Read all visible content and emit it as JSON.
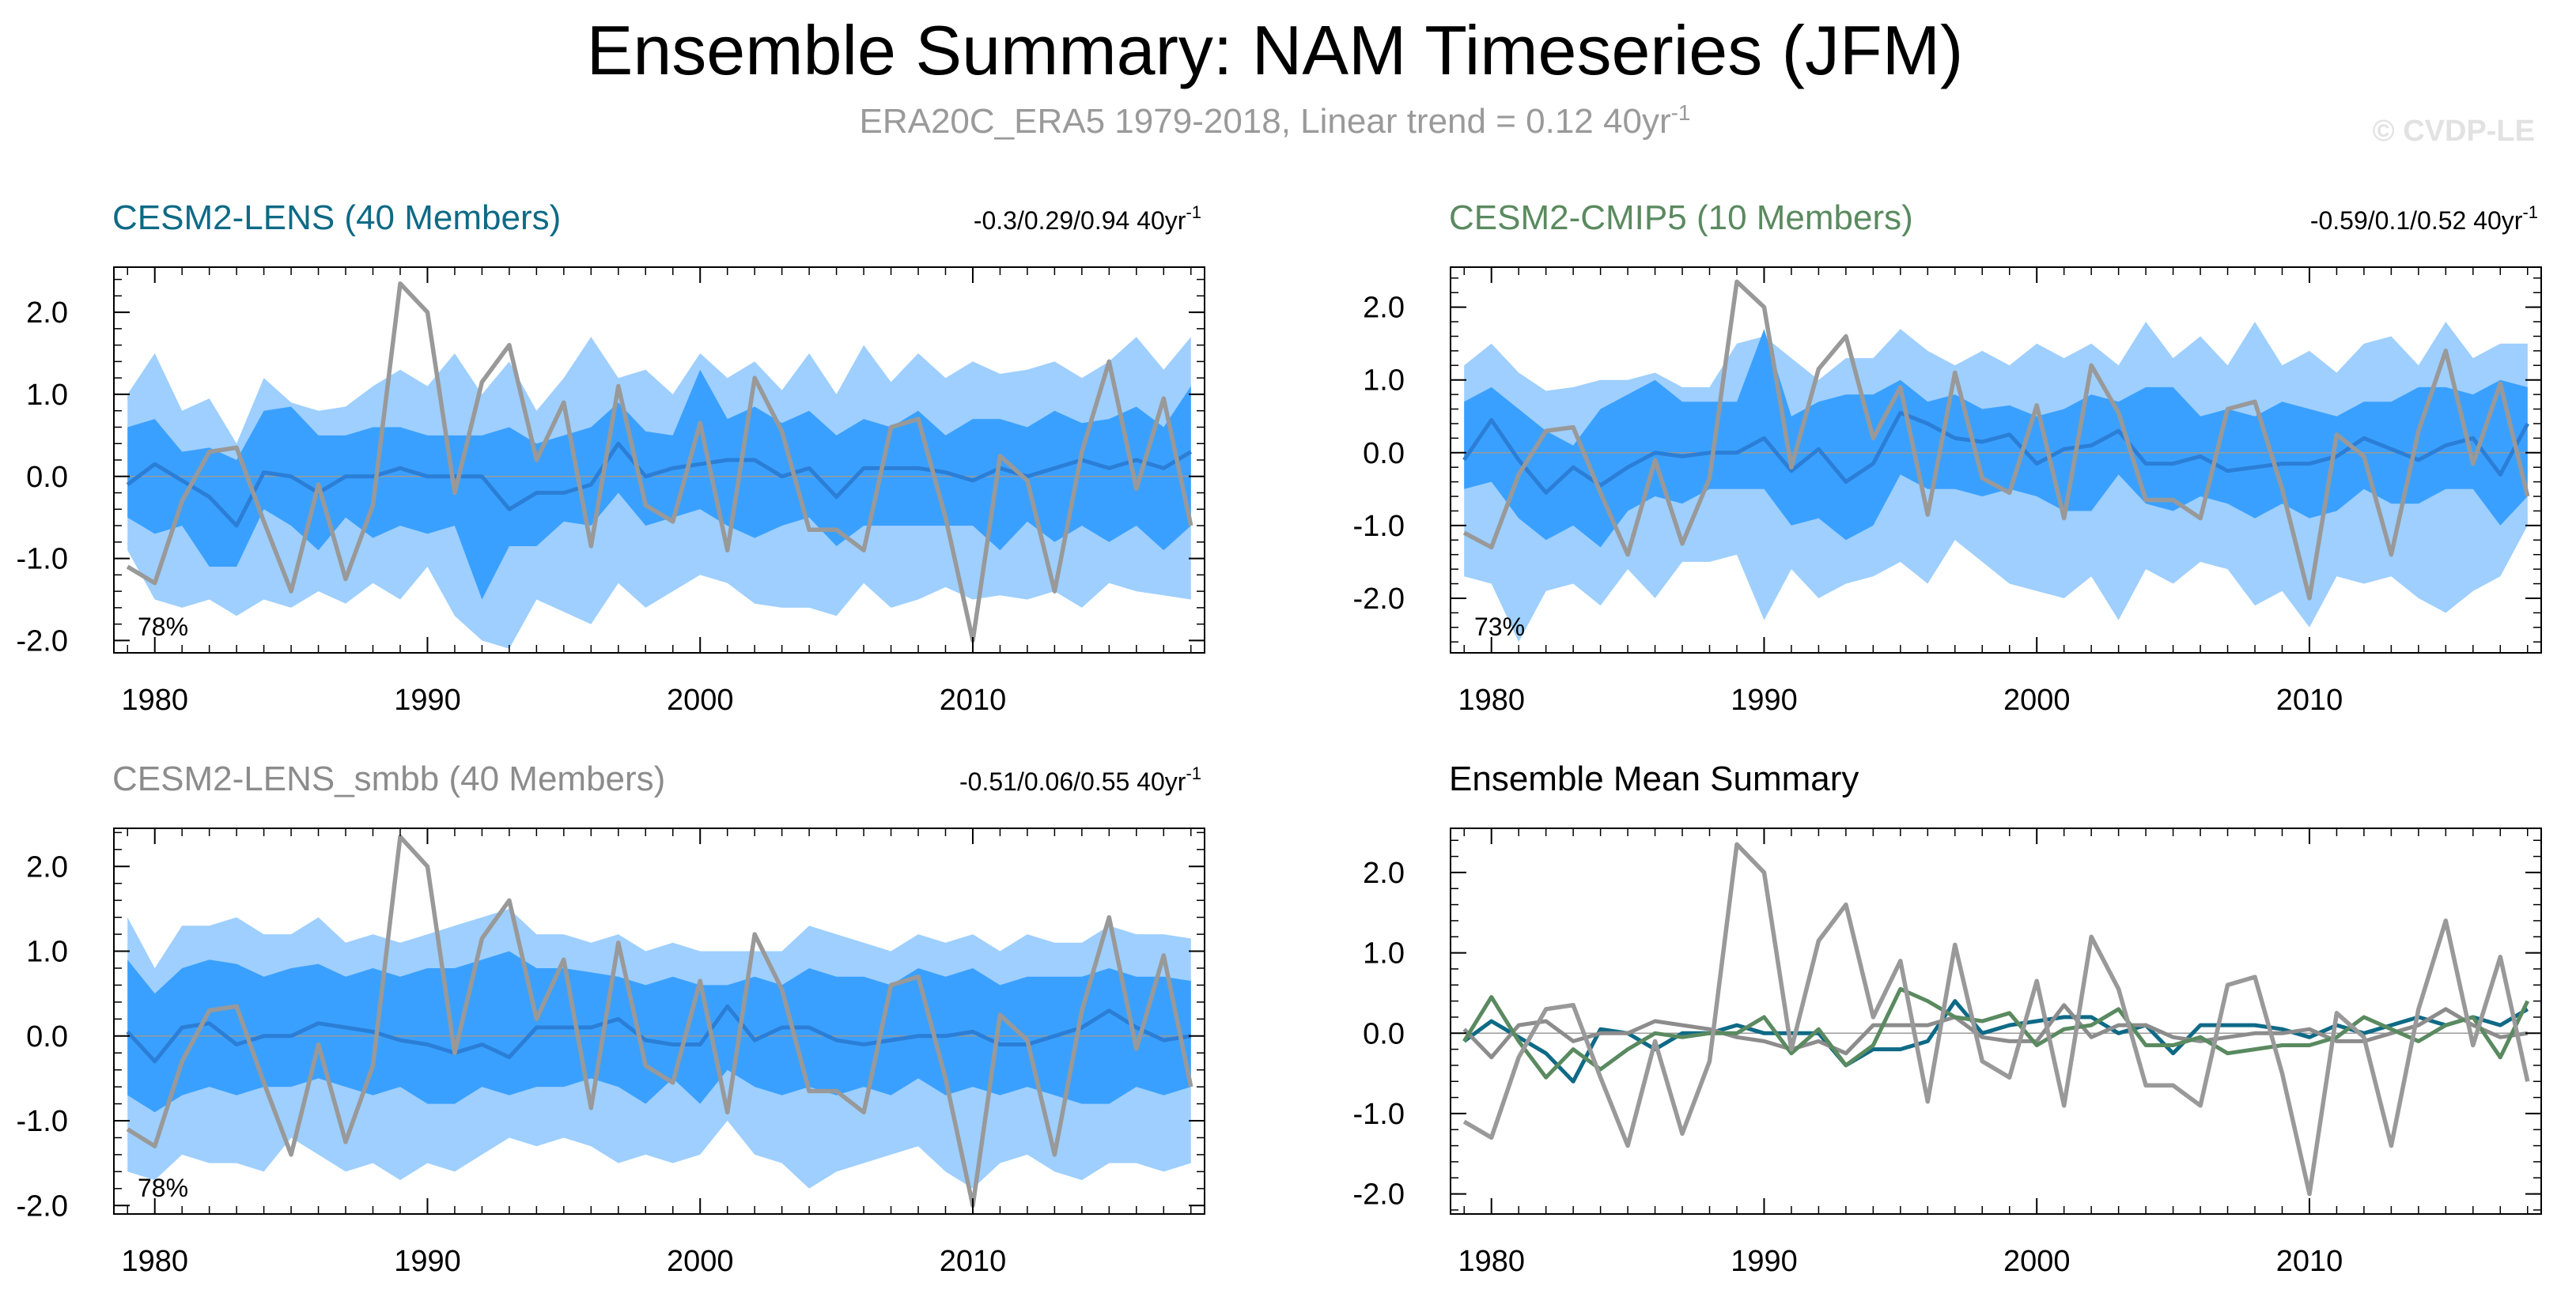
{
  "title": "Ensemble Summary: NAM Timeseries (JFM)",
  "subtitle": {
    "main": "ERA20C_ERA5 1979-2018, Linear trend = 0.12 40yr",
    "sup": "-1"
  },
  "watermark": "© CVDP-LE",
  "years": [
    1979,
    1980,
    1981,
    1982,
    1983,
    1984,
    1985,
    1986,
    1987,
    1988,
    1989,
    1990,
    1991,
    1992,
    1993,
    1994,
    1995,
    1996,
    1997,
    1998,
    1999,
    2000,
    2001,
    2002,
    2003,
    2004,
    2005,
    2006,
    2007,
    2008,
    2009,
    2010,
    2011,
    2012,
    2013,
    2014,
    2015,
    2016,
    2017,
    2018
  ],
  "observed": [
    -1.1,
    -1.3,
    -0.3,
    0.3,
    0.35,
    -0.55,
    -1.4,
    -0.1,
    -1.25,
    -0.35,
    2.35,
    2.0,
    -0.2,
    1.15,
    1.6,
    0.2,
    0.9,
    -0.85,
    1.1,
    -0.35,
    -0.55,
    0.65,
    -0.9,
    1.2,
    0.55,
    -0.65,
    -0.65,
    -0.9,
    0.6,
    0.7,
    -0.5,
    -2.0,
    0.25,
    -0.05,
    -1.4,
    0.3,
    1.4,
    -0.15,
    0.95,
    -0.6
  ],
  "colors": {
    "outer_band": "#9ecfff",
    "inner_band": "#3aa0ff",
    "ens_mean": "#2b7ed6",
    "observed": "#999999",
    "lens_title": "#0e6a86",
    "cmip5_title": "#5a8a60",
    "smbb_title": "#8c8c8c",
    "zero_line": "#9a9a9a"
  },
  "chart_data": [
    {
      "type": "area",
      "title": "CESM2-LENS (40 Members)",
      "trend_label": "-0.3/0.29/0.94 40yr",
      "trend_sup": "-1",
      "percent_label": "78%",
      "ylim": [
        -2.15,
        2.55
      ],
      "yticks": [
        -2.0,
        -1.0,
        0.0,
        1.0,
        2.0
      ],
      "ytick_labels": [
        "-2.0",
        "-1.0",
        "0.0",
        "1.0",
        "2.0"
      ],
      "xlim": [
        1978.5,
        2018.5
      ],
      "xticks": [
        1980,
        1990,
        2000,
        2010
      ],
      "xtick_labels": [
        "1980",
        "1990",
        "2000",
        "2010"
      ],
      "band_outer_upper": [
        1.0,
        1.5,
        0.8,
        0.95,
        0.4,
        1.2,
        0.9,
        0.8,
        0.85,
        1.1,
        1.3,
        1.1,
        1.5,
        1.0,
        1.4,
        0.8,
        1.2,
        1.7,
        1.2,
        1.3,
        1.0,
        1.5,
        1.2,
        1.4,
        1.05,
        1.5,
        1.0,
        1.6,
        1.15,
        1.5,
        1.2,
        1.4,
        1.25,
        1.3,
        1.4,
        1.2,
        1.4,
        1.7,
        1.3,
        1.7
      ],
      "band_inner_upper": [
        0.6,
        0.7,
        0.3,
        0.35,
        0.2,
        0.8,
        0.85,
        0.5,
        0.5,
        0.6,
        0.6,
        0.5,
        0.5,
        0.5,
        0.6,
        0.4,
        0.5,
        0.6,
        0.9,
        0.55,
        0.5,
        1.3,
        0.7,
        0.85,
        0.65,
        0.8,
        0.5,
        0.7,
        0.6,
        0.8,
        0.5,
        0.7,
        0.7,
        0.6,
        0.8,
        0.65,
        0.7,
        0.85,
        0.6,
        1.1
      ],
      "ensemble_mean": [
        -0.1,
        0.15,
        -0.05,
        -0.25,
        -0.6,
        0.05,
        0.0,
        -0.2,
        0.0,
        0.0,
        0.1,
        0.0,
        0.0,
        0.0,
        -0.4,
        -0.2,
        -0.2,
        -0.1,
        0.4,
        0.0,
        0.1,
        0.15,
        0.2,
        0.2,
        0.0,
        0.1,
        -0.25,
        0.1,
        0.1,
        0.1,
        0.05,
        -0.05,
        0.1,
        0.0,
        0.1,
        0.2,
        0.1,
        0.2,
        0.1,
        0.3
      ],
      "band_inner_lower": [
        -0.5,
        -0.7,
        -0.6,
        -1.1,
        -1.1,
        -0.4,
        -0.6,
        -0.9,
        -0.5,
        -0.75,
        -0.6,
        -0.7,
        -0.6,
        -1.5,
        -0.85,
        -0.85,
        -0.55,
        -0.6,
        -0.2,
        -0.6,
        -0.5,
        -0.4,
        -0.6,
        -0.75,
        -0.6,
        -0.5,
        -0.85,
        -0.6,
        -0.6,
        -0.6,
        -0.6,
        -0.6,
        -0.9,
        -0.55,
        -0.8,
        -0.6,
        -0.8,
        -0.6,
        -0.9,
        -0.6
      ],
      "band_outer_lower": [
        -0.9,
        -1.5,
        -1.6,
        -1.5,
        -1.7,
        -1.5,
        -1.6,
        -1.4,
        -1.55,
        -1.3,
        -1.5,
        -1.1,
        -1.7,
        -2.0,
        -2.1,
        -1.5,
        -1.65,
        -1.8,
        -1.3,
        -1.6,
        -1.4,
        -1.2,
        -1.3,
        -1.55,
        -1.6,
        -1.6,
        -1.7,
        -1.3,
        -1.6,
        -1.5,
        -1.35,
        -1.5,
        -1.45,
        -1.5,
        -1.4,
        -1.6,
        -1.3,
        -1.4,
        -1.45,
        -1.5
      ]
    },
    {
      "type": "area",
      "title": "CESM2-CMIP5 (10 Members)",
      "trend_label": "-0.59/0.1/0.52 40yr",
      "trend_sup": "-1",
      "percent_label": "73%",
      "ylim": [
        -2.75,
        2.55
      ],
      "yticks": [
        -2.0,
        -1.0,
        0.0,
        1.0,
        2.0
      ],
      "ytick_labels": [
        "-2.0",
        "-1.0",
        "0.0",
        "1.0",
        "2.0"
      ],
      "xlim": [
        1978.5,
        2018.5
      ],
      "xticks": [
        1980,
        1990,
        2000,
        2010
      ],
      "xtick_labels": [
        "1980",
        "1990",
        "2000",
        "2010"
      ],
      "band_outer_upper": [
        1.2,
        1.5,
        1.1,
        0.85,
        0.9,
        1.0,
        1.0,
        1.1,
        0.9,
        0.9,
        1.5,
        1.6,
        1.3,
        1.0,
        1.3,
        1.3,
        1.7,
        1.4,
        1.2,
        1.4,
        1.2,
        1.5,
        1.3,
        1.5,
        1.2,
        1.8,
        1.3,
        1.6,
        1.2,
        1.8,
        1.2,
        1.4,
        1.1,
        1.5,
        1.6,
        1.2,
        1.8,
        1.3,
        1.5,
        1.5
      ],
      "band_inner_upper": [
        0.7,
        0.9,
        0.6,
        0.3,
        0.1,
        0.6,
        0.8,
        1.0,
        0.7,
        0.7,
        0.7,
        1.7,
        0.5,
        0.7,
        0.8,
        0.8,
        1.0,
        0.7,
        0.8,
        0.6,
        0.65,
        0.5,
        0.6,
        0.8,
        0.7,
        0.9,
        0.9,
        0.5,
        0.6,
        0.5,
        0.7,
        0.6,
        0.5,
        0.7,
        0.7,
        0.9,
        0.9,
        0.8,
        1.0,
        0.9
      ],
      "ensemble_mean": [
        -0.1,
        0.45,
        -0.1,
        -0.55,
        -0.2,
        -0.45,
        -0.2,
        0.0,
        -0.05,
        0.0,
        0.0,
        0.2,
        -0.25,
        0.05,
        -0.4,
        -0.15,
        0.55,
        0.4,
        0.2,
        0.15,
        0.25,
        -0.15,
        0.05,
        0.1,
        0.3,
        -0.15,
        -0.15,
        -0.05,
        -0.25,
        -0.2,
        -0.15,
        -0.15,
        -0.05,
        0.2,
        0.05,
        -0.1,
        0.1,
        0.2,
        -0.3,
        0.4
      ],
      "band_inner_lower": [
        -0.5,
        -0.4,
        -0.9,
        -1.2,
        -1.0,
        -1.3,
        -0.8,
        -0.6,
        -0.7,
        -0.5,
        -0.5,
        -0.5,
        -1.0,
        -0.9,
        -1.2,
        -1.0,
        -0.3,
        -0.5,
        -0.5,
        -0.6,
        -0.5,
        -0.6,
        -0.8,
        -0.8,
        -0.3,
        -0.7,
        -0.8,
        -0.6,
        -0.7,
        -0.9,
        -0.7,
        -0.9,
        -0.8,
        -0.5,
        -0.7,
        -0.7,
        -0.5,
        -0.5,
        -1.0,
        -0.6
      ],
      "band_outer_lower": [
        -1.7,
        -1.8,
        -2.6,
        -1.9,
        -1.8,
        -2.1,
        -1.6,
        -2.0,
        -1.5,
        -1.5,
        -1.4,
        -2.3,
        -1.6,
        -2.0,
        -1.8,
        -1.7,
        -1.5,
        -1.8,
        -1.2,
        -1.5,
        -1.8,
        -1.9,
        -2.0,
        -1.7,
        -2.3,
        -1.6,
        -1.8,
        -1.5,
        -1.6,
        -2.1,
        -1.9,
        -2.4,
        -1.7,
        -1.8,
        -1.7,
        -2.0,
        -2.2,
        -1.9,
        -1.7,
        -1.0
      ]
    },
    {
      "type": "area",
      "title": "CESM2-LENS_smbb (40 Members)",
      "trend_label": "-0.51/0.06/0.55 40yr",
      "trend_sup": "-1",
      "percent_label": "78%",
      "ylim": [
        -2.1,
        2.45
      ],
      "yticks": [
        -2.0,
        -1.0,
        0.0,
        1.0,
        2.0
      ],
      "ytick_labels": [
        "-2.0",
        "-1.0",
        "0.0",
        "1.0",
        "2.0"
      ],
      "xlim": [
        1978.5,
        2018.5
      ],
      "xticks": [
        1980,
        1990,
        2000,
        2010
      ],
      "xtick_labels": [
        "1980",
        "1990",
        "2000",
        "2010"
      ],
      "band_outer_upper": [
        1.4,
        0.8,
        1.3,
        1.3,
        1.4,
        1.2,
        1.2,
        1.4,
        1.1,
        1.2,
        1.1,
        1.2,
        1.3,
        1.4,
        1.5,
        1.2,
        1.2,
        1.1,
        1.2,
        1.0,
        1.1,
        1.0,
        1.0,
        1.0,
        1.0,
        1.3,
        1.2,
        1.1,
        1.0,
        1.2,
        1.1,
        1.2,
        1.0,
        1.2,
        1.1,
        1.1,
        1.3,
        1.2,
        1.2,
        1.15
      ],
      "band_inner_upper": [
        0.9,
        0.5,
        0.8,
        0.9,
        0.85,
        0.7,
        0.8,
        0.85,
        0.7,
        0.8,
        0.7,
        0.8,
        0.8,
        0.9,
        1.0,
        0.8,
        0.8,
        0.75,
        0.7,
        0.6,
        0.7,
        0.6,
        0.6,
        0.7,
        0.6,
        0.8,
        0.7,
        0.7,
        0.6,
        0.8,
        0.7,
        0.8,
        0.6,
        0.7,
        0.7,
        0.7,
        0.8,
        0.7,
        0.7,
        0.65
      ],
      "ensemble_mean": [
        0.05,
        -0.3,
        0.1,
        0.15,
        -0.1,
        0.0,
        0.0,
        0.15,
        0.1,
        0.05,
        -0.05,
        -0.1,
        -0.2,
        -0.1,
        -0.25,
        0.1,
        0.1,
        0.1,
        0.2,
        -0.05,
        -0.1,
        -0.1,
        0.35,
        -0.05,
        0.1,
        0.1,
        -0.05,
        -0.1,
        -0.05,
        0.0,
        0.0,
        0.05,
        -0.1,
        -0.1,
        0.0,
        0.1,
        0.3,
        0.1,
        -0.05,
        0.0
      ],
      "band_inner_lower": [
        -0.7,
        -0.9,
        -0.7,
        -0.6,
        -0.7,
        -0.6,
        -0.6,
        -0.5,
        -0.6,
        -0.7,
        -0.6,
        -0.8,
        -0.8,
        -0.6,
        -0.7,
        -0.6,
        -0.6,
        -0.5,
        -0.6,
        -0.8,
        -0.5,
        -0.8,
        -0.4,
        -0.6,
        -0.7,
        -0.6,
        -0.7,
        -0.6,
        -0.7,
        -0.5,
        -0.7,
        -0.6,
        -0.7,
        -0.6,
        -0.7,
        -0.8,
        -0.8,
        -0.6,
        -0.7,
        -0.6
      ],
      "band_outer_lower": [
        -1.6,
        -1.7,
        -1.4,
        -1.5,
        -1.5,
        -1.6,
        -1.2,
        -1.4,
        -1.6,
        -1.5,
        -1.7,
        -1.5,
        -1.6,
        -1.4,
        -1.2,
        -1.3,
        -1.2,
        -1.3,
        -1.5,
        -1.4,
        -1.5,
        -1.4,
        -1.0,
        -1.4,
        -1.5,
        -1.8,
        -1.6,
        -1.5,
        -1.4,
        -1.3,
        -1.6,
        -1.8,
        -1.5,
        -1.4,
        -1.6,
        -1.7,
        -1.5,
        -1.5,
        -1.6,
        -1.5
      ]
    },
    {
      "type": "line",
      "title": "Ensemble Mean Summary",
      "ylim": [
        -2.25,
        2.55
      ],
      "yticks": [
        -2.0,
        -1.0,
        0.0,
        1.0,
        2.0
      ],
      "ytick_labels": [
        "-2.0",
        "-1.0",
        "0.0",
        "1.0",
        "2.0"
      ],
      "xlim": [
        1978.5,
        2018.5
      ],
      "xticks": [
        1980,
        1990,
        2000,
        2010
      ],
      "xtick_labels": [
        "1980",
        "1990",
        "2000",
        "2010"
      ],
      "series": [
        {
          "name": "CESM2-LENS",
          "color": "#0e6a86"
        },
        {
          "name": "CESM2-CMIP5",
          "color": "#5a8a60"
        },
        {
          "name": "CESM2-LENS_smbb",
          "color": "#8c8c8c"
        }
      ]
    }
  ]
}
